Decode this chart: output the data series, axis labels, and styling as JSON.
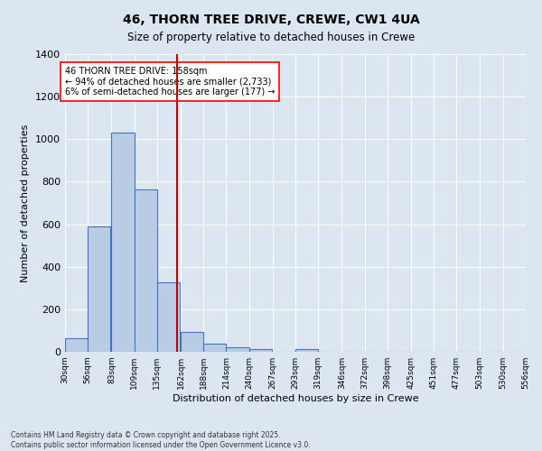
{
  "title_line1": "46, THORN TREE DRIVE, CREWE, CW1 4UA",
  "title_line2": "Size of property relative to detached houses in Crewe",
  "xlabel": "Distribution of detached houses by size in Crewe",
  "ylabel": "Number of detached properties",
  "bar_left_edges": [
    30,
    56,
    83,
    109,
    135,
    162,
    188,
    214,
    240,
    267,
    293,
    319,
    346,
    372,
    398,
    425,
    451,
    477,
    503,
    530
  ],
  "bar_heights": [
    65,
    590,
    1030,
    765,
    325,
    95,
    38,
    22,
    14,
    0,
    13,
    0,
    0,
    0,
    0,
    0,
    0,
    0,
    0,
    0
  ],
  "bin_width": 26,
  "bar_color": "#b8cce4",
  "bar_edge_color": "#4472c4",
  "bg_color": "#dce6f1",
  "grid_color": "#ffffff",
  "vline_x": 158,
  "vline_color": "#c00000",
  "ylim": [
    0,
    1400
  ],
  "yticks": [
    0,
    200,
    400,
    600,
    800,
    1000,
    1200,
    1400
  ],
  "xtick_labels": [
    "30sqm",
    "56sqm",
    "83sqm",
    "109sqm",
    "135sqm",
    "162sqm",
    "188sqm",
    "214sqm",
    "240sqm",
    "267sqm",
    "293sqm",
    "319sqm",
    "346sqm",
    "372sqm",
    "398sqm",
    "425sqm",
    "451sqm",
    "477sqm",
    "503sqm",
    "530sqm",
    "556sqm"
  ],
  "xtick_positions": [
    30,
    56,
    83,
    109,
    135,
    162,
    188,
    214,
    240,
    267,
    293,
    319,
    346,
    372,
    398,
    425,
    451,
    477,
    503,
    530,
    556
  ],
  "annotation_title": "46 THORN TREE DRIVE: 158sqm",
  "annotation_line2": "← 94% of detached houses are smaller (2,733)",
  "annotation_line3": "6% of semi-detached houses are larger (177) →",
  "footnote1": "Contains HM Land Registry data © Crown copyright and database right 2025.",
  "footnote2": "Contains public sector information licensed under the Open Government Licence v3.0."
}
